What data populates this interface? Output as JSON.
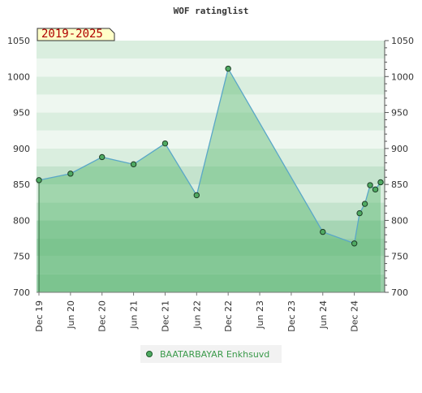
{
  "chart_data": {
    "type": "area",
    "title": "WOF ratinglist",
    "badge": "2019-2025",
    "xlabel": "",
    "ylabel": "",
    "ylim": [
      700,
      1050
    ],
    "yticks": [
      700,
      750,
      800,
      850,
      900,
      950,
      1000,
      1050
    ],
    "x_tick_labels": [
      "Dec 19",
      "Jun 20",
      "Dec 20",
      "Jun 21",
      "Dec 21",
      "Jun 22",
      "Dec 22",
      "Jun 23",
      "Dec 23",
      "Jun 24",
      "Dec 24"
    ],
    "x_tick_dates": [
      "2019-12",
      "2020-06",
      "2020-12",
      "2021-06",
      "2021-12",
      "2022-06",
      "2022-12",
      "2023-06",
      "2023-12",
      "2024-06",
      "2024-12"
    ],
    "xlim": [
      "2019-12",
      "2025-05"
    ],
    "series": [
      {
        "name": "BAATARBAYAR Enkhsuvd",
        "color": "#5aa7c8",
        "points": [
          {
            "x": "2019-12",
            "y": 856
          },
          {
            "x": "2020-06",
            "y": 865
          },
          {
            "x": "2020-12",
            "y": 888
          },
          {
            "x": "2021-06",
            "y": 878
          },
          {
            "x": "2021-12",
            "y": 907
          },
          {
            "x": "2022-06",
            "y": 835
          },
          {
            "x": "2022-12",
            "y": 1011
          },
          {
            "x": "2024-06",
            "y": 784
          },
          {
            "x": "2024-12",
            "y": 768
          },
          {
            "x": "2025-01",
            "y": 810
          },
          {
            "x": "2025-02",
            "y": 823
          },
          {
            "x": "2025-03",
            "y": 849
          },
          {
            "x": "2025-04",
            "y": 843
          },
          {
            "x": "2025-05",
            "y": 853
          }
        ]
      }
    ],
    "legend_position": "bottom",
    "colors": {
      "area_fill": "#5cb872",
      "line": "#5aa7c8",
      "marker": "#4faa62",
      "badge_bg": "#ffffc8",
      "band_green": "#b3dcbf",
      "band_light": "#eef7f0"
    }
  }
}
